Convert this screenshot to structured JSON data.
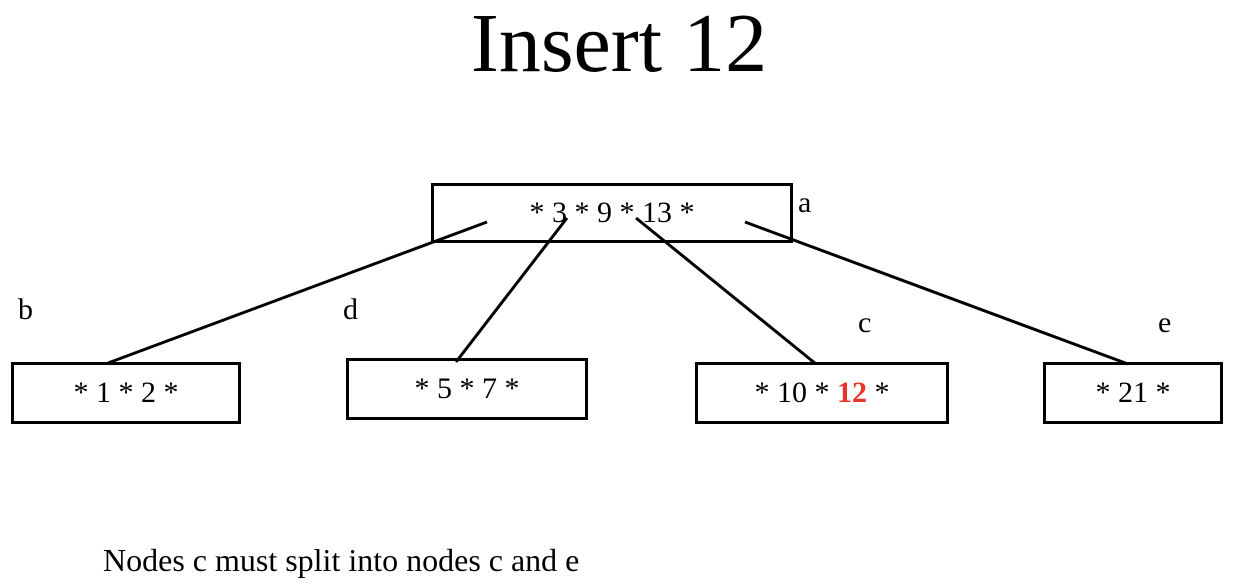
{
  "title": "Insert 12",
  "nodes": {
    "a": {
      "label": "a",
      "content": "* 3 * 9 * 13 *"
    },
    "b": {
      "label": "b",
      "content": "* 1 * 2 *"
    },
    "d": {
      "label": "d",
      "content": "* 5 * 7 *"
    },
    "c": {
      "label": "c",
      "pre": "* 10 * ",
      "highlight": "12",
      "post": " *"
    },
    "e": {
      "label": "e",
      "content": "* 21 *"
    }
  },
  "highlight_color": "#e8352a",
  "note": "Nodes c must split into nodes c and e"
}
